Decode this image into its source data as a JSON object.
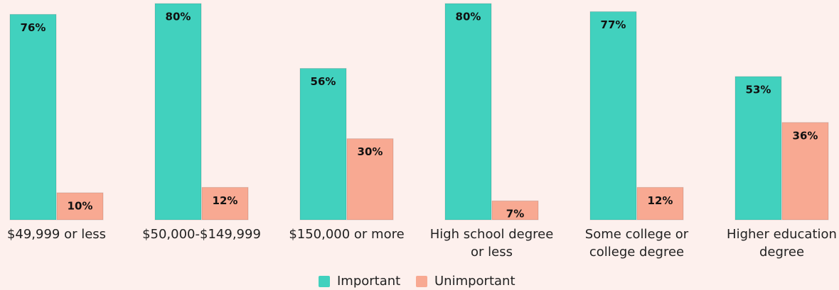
{
  "chart_data": {
    "type": "bar",
    "categories": [
      "$49,999 or less",
      "$50,000-$149,999",
      "$150,000 or more",
      "High school degree or less",
      "Some college or college degree",
      "Higher education degree"
    ],
    "series": [
      {
        "name": "Important",
        "color": "#41d1be",
        "values": [
          76,
          80,
          56,
          80,
          77,
          53
        ],
        "value_labels": [
          "76%",
          "80%",
          "56%",
          "80%",
          "77%",
          "53%"
        ]
      },
      {
        "name": "Unimportant",
        "color": "#f8a992",
        "values": [
          10,
          12,
          30,
          7,
          12,
          36
        ],
        "value_labels": [
          "10%",
          "12%",
          "30%",
          "7%",
          "12%",
          "36%"
        ]
      }
    ],
    "legend": "bottom"
  }
}
